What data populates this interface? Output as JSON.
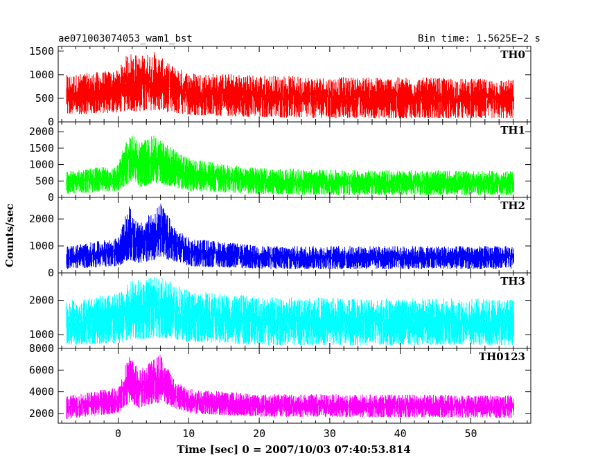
{
  "chart_data": {
    "type": "line",
    "title_left": "ae071003074053_wam1_bst",
    "title_right": "Bin time: 1.5625E−2 s",
    "xlabel": "Time [sec] 0 = 2007/10/03 07:40:53.814",
    "ylabel": "Counts/sec",
    "xlim": [
      -8.5,
      58.5
    ],
    "x_ticks": [
      0,
      10,
      20,
      30,
      40,
      50
    ],
    "x_tick_labels": [
      "0",
      "10",
      "20",
      "30",
      "40",
      "50"
    ],
    "data_x_range": [
      -7.3,
      56.0
    ],
    "panels": [
      {
        "name": "TH0",
        "color": "#ff0000",
        "ylim": [
          0,
          1600
        ],
        "y_ticks": [
          0,
          500,
          1000,
          1500
        ],
        "y_tick_labels": [
          "0",
          "500",
          "1000",
          "1500"
        ],
        "envelope": [
          [
            -7.3,
            150,
            1000
          ],
          [
            0,
            200,
            1100
          ],
          [
            1.5,
            250,
            1500
          ],
          [
            3,
            200,
            1400
          ],
          [
            5,
            250,
            1500
          ],
          [
            7,
            200,
            1250
          ],
          [
            10,
            150,
            1050
          ],
          [
            20,
            100,
            1000
          ],
          [
            30,
            80,
            950
          ],
          [
            40,
            80,
            950
          ],
          [
            56,
            80,
            900
          ]
        ]
      },
      {
        "name": "TH1",
        "color": "#00ff00",
        "ylim": [
          0,
          2300
        ],
        "y_ticks": [
          0,
          500,
          1000,
          1500,
          2000
        ],
        "y_tick_labels": [
          "0",
          "500",
          "1000",
          "1500",
          "2000"
        ],
        "envelope": [
          [
            -7.3,
            100,
            800
          ],
          [
            0,
            200,
            1000
          ],
          [
            1.5,
            400,
            2000
          ],
          [
            3,
            300,
            1700
          ],
          [
            5,
            450,
            1900
          ],
          [
            7,
            350,
            1600
          ],
          [
            10,
            200,
            1200
          ],
          [
            15,
            150,
            1000
          ],
          [
            20,
            100,
            900
          ],
          [
            30,
            80,
            850
          ],
          [
            56,
            80,
            800
          ]
        ]
      },
      {
        "name": "TH2",
        "color": "#0000ff",
        "ylim": [
          0,
          2800
        ],
        "y_ticks": [
          0,
          1000,
          2000
        ],
        "y_tick_labels": [
          "0",
          "1000",
          "2000"
        ],
        "envelope": [
          [
            -7.3,
            150,
            1000
          ],
          [
            0,
            250,
            1300
          ],
          [
            1.5,
            500,
            2500
          ],
          [
            3,
            350,
            1800
          ],
          [
            6,
            550,
            2600
          ],
          [
            8,
            400,
            1700
          ],
          [
            10,
            250,
            1300
          ],
          [
            20,
            150,
            1000
          ],
          [
            56,
            150,
            1000
          ]
        ]
      },
      {
        "name": "TH3",
        "color": "#00ffff",
        "ylim": [
          600,
          2800
        ],
        "y_ticks": [
          1000,
          2000
        ],
        "y_tick_labels": [
          "1000",
          "2000"
        ],
        "envelope": [
          [
            -7.3,
            700,
            2000
          ],
          [
            0,
            750,
            2200
          ],
          [
            2,
            850,
            2600
          ],
          [
            6,
            900,
            2700
          ],
          [
            10,
            800,
            2300
          ],
          [
            20,
            700,
            2100
          ],
          [
            56,
            700,
            2050
          ]
        ]
      },
      {
        "name": "TH0123",
        "color": "#ff00ff",
        "ylim": [
          1100,
          8000
        ],
        "y_ticks": [
          2000,
          4000,
          6000,
          8000
        ],
        "y_tick_labels": [
          "2000",
          "4000",
          "6000",
          "8000"
        ],
        "envelope": [
          [
            -7.3,
            1500,
            3600
          ],
          [
            0,
            2000,
            4500
          ],
          [
            1.5,
            3000,
            7500
          ],
          [
            3,
            2500,
            6000
          ],
          [
            6,
            3000,
            7500
          ],
          [
            8,
            2500,
            5000
          ],
          [
            10,
            2000,
            4300
          ],
          [
            20,
            1700,
            3800
          ],
          [
            56,
            1600,
            3700
          ]
        ]
      }
    ]
  }
}
